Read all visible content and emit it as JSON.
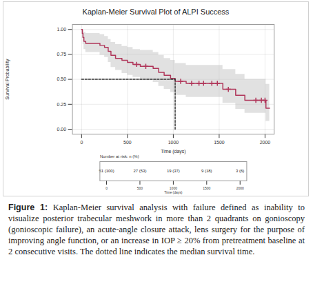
{
  "chart_data": {
    "type": "survival",
    "title": "Kaplan-Meier Survival Plot of ALPI Success",
    "xlabel": "Time (days)",
    "ylabel": "Survival Probability",
    "x": [
      0,
      8,
      15,
      25,
      45,
      200,
      250,
      290,
      320,
      370,
      440,
      500,
      560,
      640,
      780,
      840,
      900,
      970,
      1020,
      1140,
      1540,
      1680,
      1780,
      2010,
      2050
    ],
    "values": [
      1,
      0.96,
      0.92,
      0.88,
      0.86,
      0.84,
      0.82,
      0.78,
      0.74,
      0.71,
      0.69,
      0.67,
      0.65,
      0.63,
      0.61,
      0.57,
      0.54,
      0.51,
      0.48,
      0.46,
      0.4,
      0.34,
      0.29,
      0.21,
      0.21
    ],
    "ci_lower": [
      1,
      0.91,
      0.85,
      0.8,
      0.77,
      0.74,
      0.72,
      0.67,
      0.62,
      0.59,
      0.56,
      0.54,
      0.52,
      0.49,
      0.47,
      0.43,
      0.4,
      0.37,
      0.34,
      0.32,
      0.26,
      0.2,
      0.16,
      0.08,
      0.08
    ],
    "ci_upper": [
      1,
      1,
      0.99,
      0.97,
      0.96,
      0.95,
      0.93,
      0.9,
      0.87,
      0.85,
      0.83,
      0.82,
      0.8,
      0.79,
      0.77,
      0.74,
      0.71,
      0.69,
      0.66,
      0.64,
      0.6,
      0.55,
      0.5,
      0.45,
      0.45
    ],
    "censored": {
      "x": [
        600,
        700,
        1080,
        1200,
        1280,
        1330,
        1420,
        1480,
        1600,
        1900,
        1960,
        2000
      ],
      "values": [
        0.65,
        0.63,
        0.48,
        0.46,
        0.46,
        0.46,
        0.46,
        0.46,
        0.4,
        0.29,
        0.29,
        0.29
      ]
    },
    "median": {
      "time": 1020,
      "survival": 0.5
    },
    "color": "#b0365a",
    "marker": "plus",
    "grid": true,
    "xlim": [
      -100,
      2100
    ],
    "ylim": [
      -0.05,
      1.05
    ],
    "xticks": [
      0,
      500,
      1000,
      1500,
      2000
    ],
    "yticks": [
      {
        "value": 0,
        "label": "0.00"
      },
      {
        "value": 0.25,
        "label": "0.25"
      },
      {
        "value": 0.5,
        "label": "0.50"
      },
      {
        "value": 0.75,
        "label": "0.75"
      },
      {
        "value": 1,
        "label": "1.00"
      }
    ],
    "risk_table": {
      "title": "Number at risk: n (%)",
      "x": [
        0,
        500,
        1000,
        1500,
        2000
      ],
      "labels": [
        "51 (100)",
        "27 (53)",
        "19 (37)",
        "9 (18)",
        "3 (6)"
      ],
      "xlabel": "Time (days)",
      "xticks": [
        0,
        500,
        1000,
        1500,
        2000
      ]
    },
    "caption": {
      "label": "Figure 1:",
      "text": "Kaplan-Meier survival analysis with failure defined as inability to visualize posterior trabecular meshwork in more than 2 quadrants on gonioscopy (gonioscopic failure), an acute-angle closure attack, lens surgery for the purpose of improving angle function, or an increase in IOP ≥ 20% from pretreatment baseline at 2 consecutive visits. The dotted line indicates the median survival time."
    }
  }
}
